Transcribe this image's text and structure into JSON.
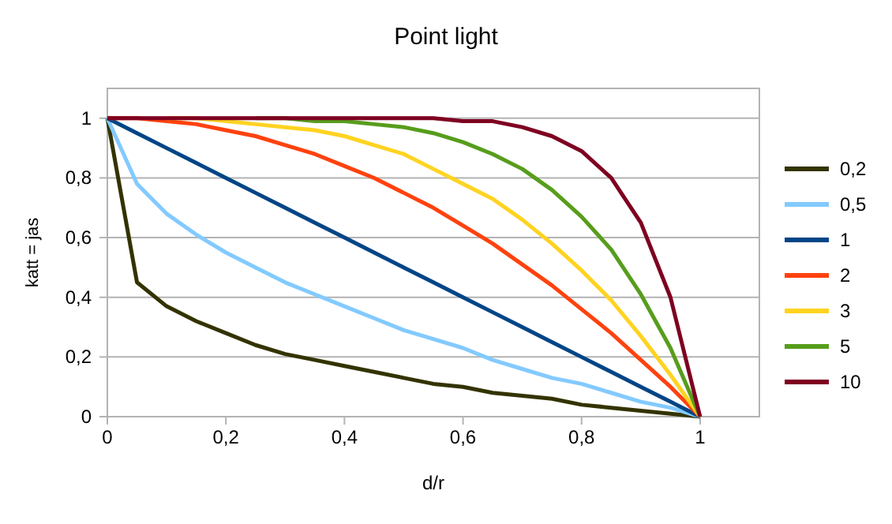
{
  "chart_data": {
    "type": "line",
    "title": "Point light",
    "xlabel": "d/r",
    "ylabel": "katt = jas",
    "x": [
      0,
      0.05,
      0.1,
      0.15,
      0.2,
      0.25,
      0.3,
      0.35,
      0.4,
      0.45,
      0.5,
      0.55,
      0.6,
      0.65,
      0.7,
      0.75,
      0.8,
      0.85,
      0.9,
      0.95,
      1
    ],
    "series": [
      {
        "name": "0,2",
        "color": "#333300",
        "values": [
          1,
          0.45,
          0.37,
          0.32,
          0.28,
          0.24,
          0.21,
          0.19,
          0.17,
          0.15,
          0.13,
          0.11,
          0.1,
          0.08,
          0.07,
          0.06,
          0.04,
          0.03,
          0.02,
          0.01,
          0
        ]
      },
      {
        "name": "0,5",
        "color": "#83caff",
        "values": [
          1,
          0.78,
          0.68,
          0.61,
          0.55,
          0.5,
          0.45,
          0.41,
          0.37,
          0.33,
          0.29,
          0.26,
          0.23,
          0.19,
          0.16,
          0.13,
          0.11,
          0.08,
          0.05,
          0.03,
          0
        ]
      },
      {
        "name": "1",
        "color": "#004586",
        "values": [
          1,
          0.95,
          0.9,
          0.85,
          0.8,
          0.75,
          0.7,
          0.65,
          0.6,
          0.55,
          0.5,
          0.45,
          0.4,
          0.35,
          0.3,
          0.25,
          0.2,
          0.15,
          0.1,
          0.05,
          0
        ]
      },
      {
        "name": "2",
        "color": "#ff420e",
        "values": [
          1,
          1,
          0.99,
          0.98,
          0.96,
          0.94,
          0.91,
          0.88,
          0.84,
          0.8,
          0.75,
          0.7,
          0.64,
          0.58,
          0.51,
          0.44,
          0.36,
          0.28,
          0.19,
          0.1,
          0
        ]
      },
      {
        "name": "3",
        "color": "#ffd320",
        "values": [
          null,
          null,
          1,
          1,
          0.99,
          0.98,
          0.97,
          0.96,
          0.94,
          0.91,
          0.88,
          0.83,
          0.78,
          0.73,
          0.66,
          0.58,
          0.49,
          0.39,
          0.27,
          0.14,
          0
        ]
      },
      {
        "name": "5",
        "color": "#579d1c",
        "values": [
          null,
          null,
          null,
          null,
          null,
          1,
          1,
          0.99,
          0.99,
          0.98,
          0.97,
          0.95,
          0.92,
          0.88,
          0.83,
          0.76,
          0.67,
          0.56,
          0.41,
          0.23,
          0
        ]
      },
      {
        "name": "10",
        "color": "#7e0021",
        "values": [
          1,
          1,
          1,
          1,
          1,
          1,
          1,
          1,
          1,
          1,
          1,
          1,
          0.99,
          0.99,
          0.97,
          0.94,
          0.89,
          0.8,
          0.65,
          0.4,
          0
        ]
      }
    ],
    "xlim": [
      0,
      1.1
    ],
    "ylim": [
      0,
      1.1
    ],
    "xticks": [
      0,
      {
        "value": 0.2,
        "label": "0,2"
      },
      {
        "value": 0.4,
        "label": "0,4"
      },
      {
        "value": 0.6,
        "label": "0,6"
      },
      {
        "value": 0.8,
        "label": "0,8"
      },
      1
    ],
    "yticks": [
      0,
      {
        "value": 0.2,
        "label": "0,2"
      },
      {
        "value": 0.4,
        "label": "0,4"
      },
      {
        "value": 0.6,
        "label": "0,6"
      },
      {
        "value": 0.8,
        "label": "0,8"
      },
      1
    ],
    "grid": "y",
    "legend": "right",
    "marker": "none",
    "line_style": "solid"
  }
}
